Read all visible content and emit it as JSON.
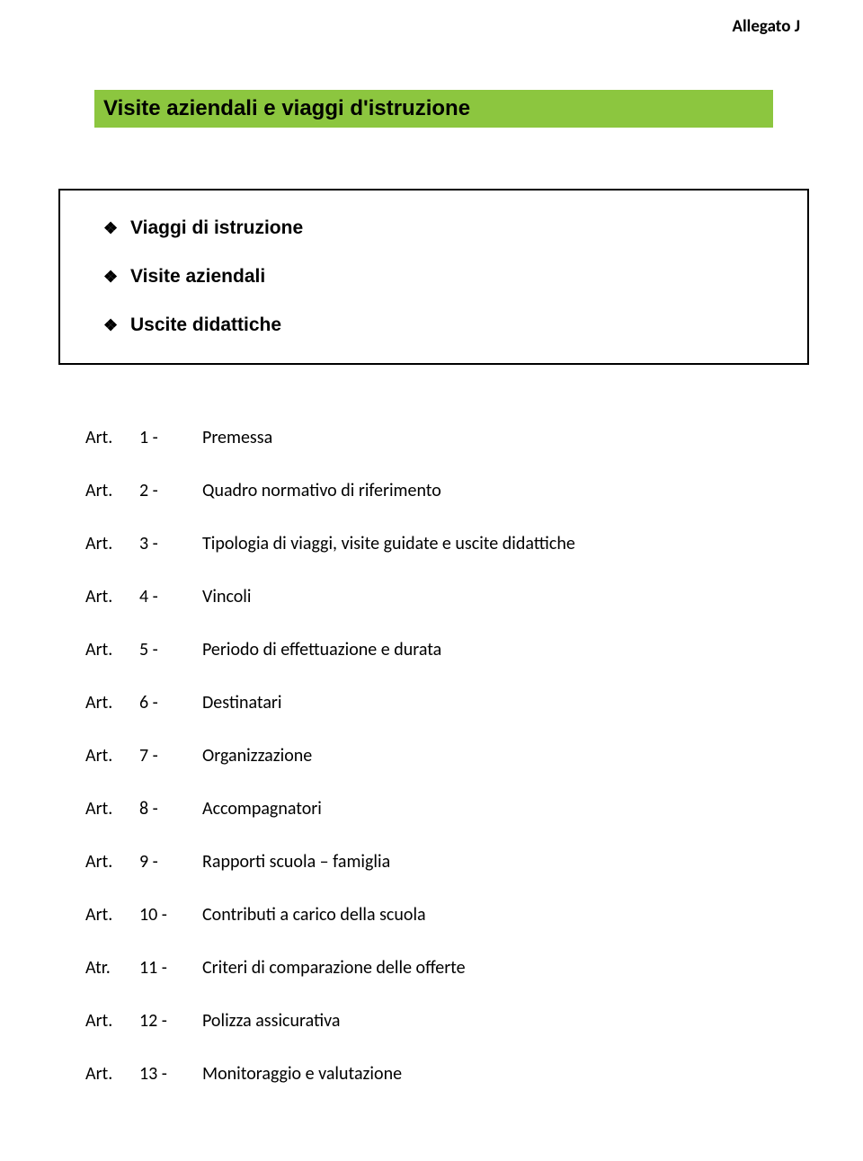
{
  "header": {
    "right": "Allegato J"
  },
  "title": {
    "text": "Visite aziendali e viaggi d'istruzione",
    "bg": "#8cc63f"
  },
  "bullets": {
    "glyph": "❖",
    "items": [
      "Viaggi di istruzione",
      "Visite aziendali",
      "Uscite didattiche"
    ]
  },
  "articles": {
    "prefix_art": "Art.",
    "prefix_atr": "Atr.",
    "rows": [
      {
        "prefix": "Art.",
        "num": "1 -",
        "desc": "Premessa"
      },
      {
        "prefix": "Art.",
        "num": "2 -",
        "desc": "Quadro normativo di riferimento"
      },
      {
        "prefix": "Art.",
        "num": "3 -",
        "desc": "Tipologia di viaggi, visite guidate e uscite didattiche"
      },
      {
        "prefix": "Art.",
        "num": "4 -",
        "desc": " Vincoli"
      },
      {
        "prefix": "Art.",
        "num": "5 -",
        "desc": "Periodo di effettuazione e durata"
      },
      {
        "prefix": "Art.",
        "num": "6 -",
        "desc": "Destinatari"
      },
      {
        "prefix": "Art.",
        "num": "7 -",
        "desc": "Organizzazione"
      },
      {
        "prefix": "Art.",
        "num": "8 -",
        "desc": "Accompagnatori"
      },
      {
        "prefix": "Art.",
        "num": "9 -",
        "desc": "Rapporti scuola – famiglia"
      },
      {
        "prefix": "Art.",
        "num": "10 -",
        "desc": "Contributi a carico della scuola"
      },
      {
        "prefix": "Atr.",
        "num": "11 -",
        "desc": "Criteri di comparazione delle offerte"
      },
      {
        "prefix": "Art.",
        "num": "12 -",
        "desc": "Polizza assicurativa"
      },
      {
        "prefix": "Art.",
        "num": "13 -",
        "desc": "Monitoraggio e valutazione"
      }
    ]
  },
  "colors": {
    "text": "#000000",
    "background": "#ffffff",
    "title_bg": "#8cc63f",
    "box_border": "#000000"
  },
  "typography": {
    "body_font": "Calibri",
    "title_font": "Arial",
    "bullet_font": "Arial",
    "title_fontsize": 24,
    "bullet_fontsize": 21,
    "article_fontsize": 20,
    "header_fontsize": 19
  }
}
